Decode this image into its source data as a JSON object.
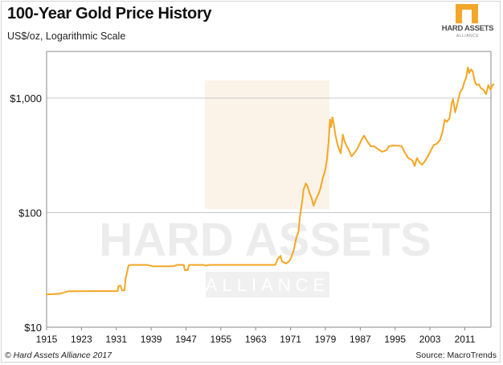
{
  "header": {
    "title": "100-Year Gold Price History",
    "subtitle": "US$/oz, Logarithmic Scale"
  },
  "logo": {
    "name": "HARD ASSETS",
    "tagline": "ALLIANCE"
  },
  "watermark": {
    "line1": "HARD ASSETS",
    "line2": "ALLIANCE"
  },
  "footer": {
    "copyright": "© Hard Assets Alliance 2017",
    "source": "Source: MacroTrends"
  },
  "colors": {
    "line": "#f5a623",
    "gridline": "#c8c8c8",
    "axis": "#8a8a8a",
    "brand": "#f3a72a"
  },
  "chart_data": {
    "type": "line",
    "title": "100-Year Gold Price History",
    "subtitle": "US$/oz, Logarithmic Scale",
    "xlabel": "",
    "ylabel": "US$/oz",
    "yscale": "log",
    "ylim": [
      10,
      2000
    ],
    "xlim": [
      1915,
      2017
    ],
    "y_ticks": [
      {
        "value": 10,
        "label": "$10"
      },
      {
        "value": 100,
        "label": "$100"
      },
      {
        "value": 1000,
        "label": "$1,000"
      }
    ],
    "x_ticks": [
      {
        "value": 1915,
        "label": "1915"
      },
      {
        "value": 1923,
        "label": "1923"
      },
      {
        "value": 1931,
        "label": "1931"
      },
      {
        "value": 1939,
        "label": "1939"
      },
      {
        "value": 1947,
        "label": "1947"
      },
      {
        "value": 1955,
        "label": "1955"
      },
      {
        "value": 1963,
        "label": "1963"
      },
      {
        "value": 1971,
        "label": "1971"
      },
      {
        "value": 1979,
        "label": "1979"
      },
      {
        "value": 1987,
        "label": "1987"
      },
      {
        "value": 1995,
        "label": "1995"
      },
      {
        "value": 2003,
        "label": "2003"
      },
      {
        "value": 2011,
        "label": "2011"
      }
    ],
    "series": [
      {
        "name": "Gold price",
        "points": [
          [
            1915,
            19.3
          ],
          [
            1918,
            19.6
          ],
          [
            1920,
            20.6
          ],
          [
            1925,
            20.67
          ],
          [
            1930,
            20.67
          ],
          [
            1931.3,
            20.7
          ],
          [
            1931.5,
            23
          ],
          [
            1932.0,
            23
          ],
          [
            1932.3,
            21
          ],
          [
            1932.9,
            21
          ],
          [
            1933.1,
            26
          ],
          [
            1933.8,
            34.5
          ],
          [
            1934.2,
            35
          ],
          [
            1938,
            35
          ],
          [
            1939.5,
            34
          ],
          [
            1944,
            34
          ],
          [
            1945,
            35
          ],
          [
            1946.5,
            35
          ],
          [
            1946.7,
            31.5
          ],
          [
            1947.4,
            31.5
          ],
          [
            1947.7,
            35
          ],
          [
            1951,
            35
          ],
          [
            1951.5,
            34.5
          ],
          [
            1952.5,
            35
          ],
          [
            1967.5,
            35
          ],
          [
            1968,
            39
          ],
          [
            1968.7,
            42
          ],
          [
            1969.0,
            37.5
          ],
          [
            1970,
            36
          ],
          [
            1970.8,
            38
          ],
          [
            1971.3,
            42
          ],
          [
            1971.8,
            48
          ],
          [
            1972.3,
            60
          ],
          [
            1972.8,
            68
          ],
          [
            1973.2,
            95
          ],
          [
            1973.6,
            120
          ],
          [
            1974.0,
            160
          ],
          [
            1974.5,
            180
          ],
          [
            1974.9,
            170
          ],
          [
            1975.3,
            150
          ],
          [
            1975.8,
            135
          ],
          [
            1976.3,
            115
          ],
          [
            1976.8,
            130
          ],
          [
            1977.4,
            145
          ],
          [
            1977.9,
            165
          ],
          [
            1978.4,
            200
          ],
          [
            1978.9,
            230
          ],
          [
            1979.3,
            280
          ],
          [
            1979.7,
            400
          ],
          [
            1980.05,
            650
          ],
          [
            1980.3,
            560
          ],
          [
            1980.6,
            680
          ],
          [
            1980.9,
            600
          ],
          [
            1981.3,
            480
          ],
          [
            1981.6,
            420
          ],
          [
            1982.0,
            370
          ],
          [
            1982.5,
            330
          ],
          [
            1983.0,
            480
          ],
          [
            1983.4,
            420
          ],
          [
            1983.9,
            380
          ],
          [
            1984.4,
            350
          ],
          [
            1985.0,
            310
          ],
          [
            1985.6,
            330
          ],
          [
            1986.3,
            360
          ],
          [
            1986.9,
            400
          ],
          [
            1987.4,
            440
          ],
          [
            1987.9,
            470
          ],
          [
            1988.6,
            420
          ],
          [
            1989.4,
            380
          ],
          [
            1990.2,
            380
          ],
          [
            1991.0,
            360
          ],
          [
            1992.0,
            340
          ],
          [
            1993.0,
            350
          ],
          [
            1993.6,
            380
          ],
          [
            1994.5,
            385
          ],
          [
            1995.5,
            385
          ],
          [
            1996.5,
            380
          ],
          [
            1997.3,
            330
          ],
          [
            1998.0,
            300
          ],
          [
            1999.0,
            285
          ],
          [
            1999.5,
            255
          ],
          [
            2000.0,
            300
          ],
          [
            2000.6,
            275
          ],
          [
            2001.2,
            262
          ],
          [
            2001.8,
            280
          ],
          [
            2002.5,
            310
          ],
          [
            2003.2,
            350
          ],
          [
            2003.9,
            390
          ],
          [
            2004.6,
            400
          ],
          [
            2005.3,
            430
          ],
          [
            2005.9,
            510
          ],
          [
            2006.4,
            650
          ],
          [
            2006.9,
            620
          ],
          [
            2007.5,
            670
          ],
          [
            2008.0,
            900
          ],
          [
            2008.3,
            980
          ],
          [
            2008.8,
            750
          ],
          [
            2009.3,
            900
          ],
          [
            2009.9,
            1120
          ],
          [
            2010.5,
            1220
          ],
          [
            2010.9,
            1380
          ],
          [
            2011.3,
            1500
          ],
          [
            2011.7,
            1850
          ],
          [
            2012.0,
            1650
          ],
          [
            2012.4,
            1780
          ],
          [
            2012.8,
            1720
          ],
          [
            2013.3,
            1400
          ],
          [
            2013.7,
            1300
          ],
          [
            2014.2,
            1320
          ],
          [
            2014.7,
            1220
          ],
          [
            2015.3,
            1180
          ],
          [
            2015.9,
            1080
          ],
          [
            2016.4,
            1300
          ],
          [
            2016.9,
            1180
          ],
          [
            2017.3,
            1290
          ],
          [
            2017.6,
            1320
          ]
        ]
      }
    ]
  }
}
